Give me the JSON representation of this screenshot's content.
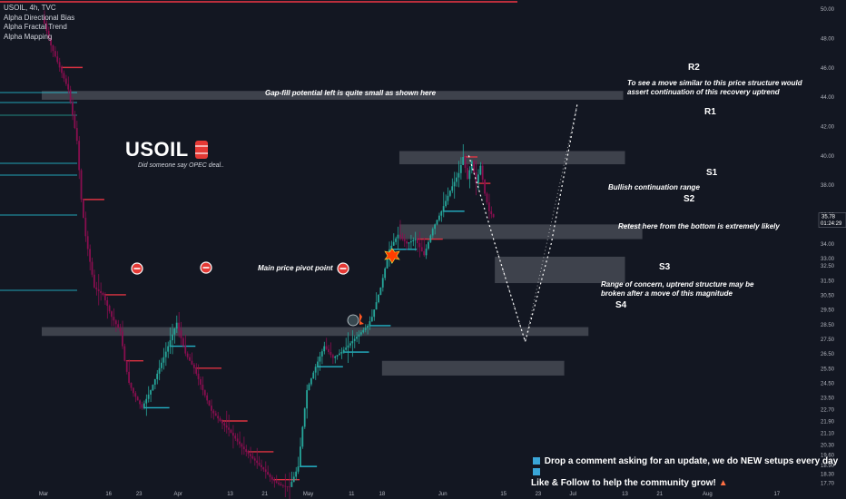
{
  "legend": [
    "USOIL, 4h, TVC",
    "Alpha Directional Bias",
    "Alpha Fractal Trend",
    "Alpha Mapping"
  ],
  "ticker": {
    "name": "USOIL",
    "subtitle": "Did someone say OPEC deal.."
  },
  "annotations": {
    "gap": "Gap-fill potential left is quite small as shown here",
    "move_line1": "To see a move similar to this price structure would",
    "move_line2": "assert continuation of this recovery uptrend",
    "bullish": "Bullish continuation range",
    "retest": "Retest here from the bottom is extremely likely",
    "pivot": "Main price pivot point",
    "concern_line1": "Range of concern, uptrend structure may be",
    "concern_line2": "broken after a move of this magnitude"
  },
  "footer": {
    "line1": "Drop a comment asking for an update, we do NEW setups every day",
    "line2": "Like & Follow to help the community grow!"
  },
  "colors": {
    "bg": "#131722",
    "up": "#26a69a",
    "down": "#880e4f",
    "zone": "#4a4e59",
    "red_level": "#f23645",
    "teal_level": "#26c6da",
    "text": "#d1d4dc"
  },
  "chart_data": {
    "type": "line",
    "title": "USOIL, 4h, TVC",
    "xlabel": "",
    "ylabel": "",
    "ylim": [
      17.2,
      50.6
    ],
    "x_ticks": [
      {
        "label": "Mar",
        "day": 0
      },
      {
        "label": "16",
        "day": 15
      },
      {
        "label": "23",
        "day": 22
      },
      {
        "label": "Apr",
        "day": 31
      },
      {
        "label": "13",
        "day": 43
      },
      {
        "label": "21",
        "day": 51
      },
      {
        "label": "May",
        "day": 61
      },
      {
        "label": "11",
        "day": 71
      },
      {
        "label": "18",
        "day": 78
      },
      {
        "label": "Jun",
        "day": 92
      },
      {
        "label": "15",
        "day": 106
      },
      {
        "label": "23",
        "day": 114
      },
      {
        "label": "Jul",
        "day": 122
      },
      {
        "label": "13",
        "day": 134
      },
      {
        "label": "21",
        "day": 142
      },
      {
        "label": "Aug",
        "day": 153
      },
      {
        "label": "17",
        "day": 169
      }
    ],
    "y_ticks": [
      50.0,
      48.0,
      46.0,
      44.0,
      42.0,
      40.0,
      38.0,
      36.0,
      34.0,
      33.0,
      32.5,
      31.5,
      30.5,
      29.5,
      28.5,
      27.5,
      26.5,
      25.5,
      24.5,
      23.5,
      22.7,
      21.9,
      21.1,
      20.3,
      19.6,
      18.9,
      18.3,
      17.7
    ],
    "last_price": {
      "value": 35.78,
      "label": "35.78",
      "countdown": "01:24:29"
    },
    "price_series": {
      "name": "USOIL",
      "points": [
        [
          0,
          49.5
        ],
        [
          2,
          47.5
        ],
        [
          4,
          46.0
        ],
        [
          6,
          44.5
        ],
        [
          8,
          41.0
        ],
        [
          9,
          37.0
        ],
        [
          10,
          34.5
        ],
        [
          12,
          31.0
        ],
        [
          14,
          30.5
        ],
        [
          16,
          29.0
        ],
        [
          18,
          28.0
        ],
        [
          19,
          26.0
        ],
        [
          20,
          24.5
        ],
        [
          21,
          23.8
        ],
        [
          23,
          22.8
        ],
        [
          25,
          24.0
        ],
        [
          27,
          25.5
        ],
        [
          29,
          27.0
        ],
        [
          31,
          28.6
        ],
        [
          33,
          26.5
        ],
        [
          35,
          25.5
        ],
        [
          37,
          24.0
        ],
        [
          39,
          22.6
        ],
        [
          41,
          21.9
        ],
        [
          43,
          21.3
        ],
        [
          45,
          20.5
        ],
        [
          47,
          19.8
        ],
        [
          49,
          19.2
        ],
        [
          51,
          18.6
        ],
        [
          53,
          17.9
        ],
        [
          55,
          17.5
        ],
        [
          57,
          17.4
        ],
        [
          59,
          18.8
        ],
        [
          60,
          21.5
        ],
        [
          61,
          24.0
        ],
        [
          63,
          25.6
        ],
        [
          65,
          27.0
        ],
        [
          67,
          26.2
        ],
        [
          69,
          26.6
        ],
        [
          71,
          27.2
        ],
        [
          73,
          27.8
        ],
        [
          75,
          28.4
        ],
        [
          76,
          29.0
        ],
        [
          78,
          31.0
        ],
        [
          80,
          33.6
        ],
        [
          82,
          34.6
        ],
        [
          84,
          34.0
        ],
        [
          86,
          34.3
        ],
        [
          88,
          33.2
        ],
        [
          90,
          35.0
        ],
        [
          92,
          36.2
        ],
        [
          94,
          37.6
        ],
        [
          96,
          38.8
        ],
        [
          97,
          39.9
        ],
        [
          98,
          38.4
        ],
        [
          99,
          39.6
        ],
        [
          100,
          38.1
        ],
        [
          101,
          39.3
        ],
        [
          102,
          37.4
        ],
        [
          103,
          36.2
        ],
        [
          104,
          35.8
        ]
      ]
    },
    "levels": [
      {
        "name": "R2",
        "low": 43.8,
        "high": 44.4,
        "x_start": 0,
        "x_end": 134,
        "color": "#4a4e59"
      },
      {
        "name": "R1",
        "low": 39.4,
        "high": 40.3,
        "x_start": 82,
        "x_end": 134,
        "color": "#4a4e59"
      },
      {
        "name": "S1",
        "low": 34.3,
        "high": 35.3,
        "x_start": 82,
        "x_end": 138,
        "color": "#4a4e59"
      },
      {
        "name": "S2",
        "low": 31.3,
        "high": 33.1,
        "x_start": 104,
        "x_end": 134,
        "color": "#4a4e59"
      },
      {
        "name": "S3",
        "low": 27.7,
        "high": 28.3,
        "x_start": 0,
        "x_end": 126,
        "color": "#4a4e59"
      },
      {
        "name": "S4",
        "low": 25.0,
        "high": 26.0,
        "x_start": 78,
        "x_end": 120,
        "color": "#4a4e59"
      }
    ],
    "projection": [
      [
        98,
        40.0
      ],
      [
        104,
        34.0
      ],
      [
        111,
        27.3
      ],
      [
        117,
        34.0
      ],
      [
        123,
        43.5
      ]
    ]
  }
}
